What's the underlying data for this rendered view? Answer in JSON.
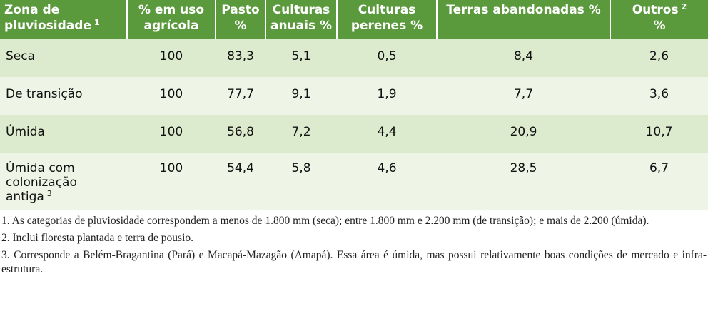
{
  "table": {
    "columns": [
      {
        "text": "Zona de pluviosidade",
        "note": "1"
      },
      {
        "text": "% em uso agrícola"
      },
      {
        "text": "Pasto %"
      },
      {
        "text": "Culturas anuais %"
      },
      {
        "text": "Culturas perenes %"
      },
      {
        "text": "Terras abandonadas %"
      },
      {
        "text": "Outros",
        "note": "2",
        "after": "%"
      }
    ],
    "rows": [
      [
        {
          "text": "Seca"
        },
        "100",
        "83,3",
        "5,1",
        "0,5",
        "8,4",
        "2,6"
      ],
      [
        {
          "text": "De transição"
        },
        "100",
        "77,7",
        "9,1",
        "1,9",
        "7,7",
        "3,6"
      ],
      [
        {
          "text": "Úmida"
        },
        "100",
        "56,8",
        "7,2",
        "4,4",
        "20,9",
        "10,7"
      ],
      [
        {
          "text": "Úmida com colonização antiga",
          "note": "3"
        },
        "100",
        "54,4",
        "5,8",
        "4,6",
        "28,5",
        "6,7"
      ]
    ]
  },
  "footnotes": [
    "1. As categorias de pluviosidade correspondem a menos de 1.800 mm (seca); entre 1.800 mm e 2.200 mm (de transição); e mais de 2.200 (úmida).",
    "2. Inclui floresta plantada e terra de pousio.",
    "3. Corresponde a Belém-Bragantina (Pará) e Macapá-Mazagão (Amapá). Essa área é úmida, mas possui relativamente boas condições de mercado e infra-estrutura."
  ]
}
